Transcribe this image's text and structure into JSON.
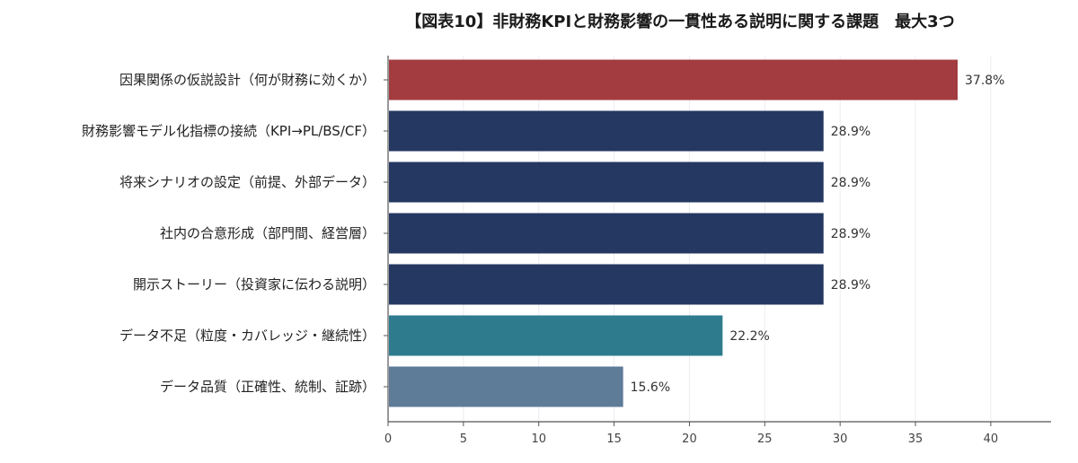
{
  "chart_data": {
    "type": "bar",
    "orientation": "horizontal",
    "title": "【図表10】非財務KPIと財務影響の一貫性ある説明に関する課題　最大3つ",
    "xlabel": "",
    "ylabel": "",
    "xlim": [
      0,
      44
    ],
    "x_ticks": [
      0,
      5,
      10,
      15,
      20,
      25,
      30,
      35,
      40
    ],
    "grid": "vertical",
    "categories": [
      "因果関係の仮説設計（何が財務に効くか）",
      "財務影響モデル化指標の接続（KPI→PL/BS/CF）",
      "将来シナリオの設定（前提、外部データ）",
      "社内の合意形成（部門間、経営層）",
      "開示ストーリー（投資家に伝わる説明）",
      "データ不足（粒度・カバレッジ・継続性）",
      "データ品質（正確性、統制、証跡）"
    ],
    "values": [
      37.8,
      28.9,
      28.9,
      28.9,
      28.9,
      22.2,
      15.6
    ],
    "value_labels": [
      "37.8%",
      "28.9%",
      "28.9%",
      "28.9%",
      "28.9%",
      "22.2%",
      "15.6%"
    ],
    "bar_colors": [
      "#a23c40",
      "#243861",
      "#243861",
      "#243861",
      "#243861",
      "#2e7b8e",
      "#5e7b98"
    ]
  }
}
